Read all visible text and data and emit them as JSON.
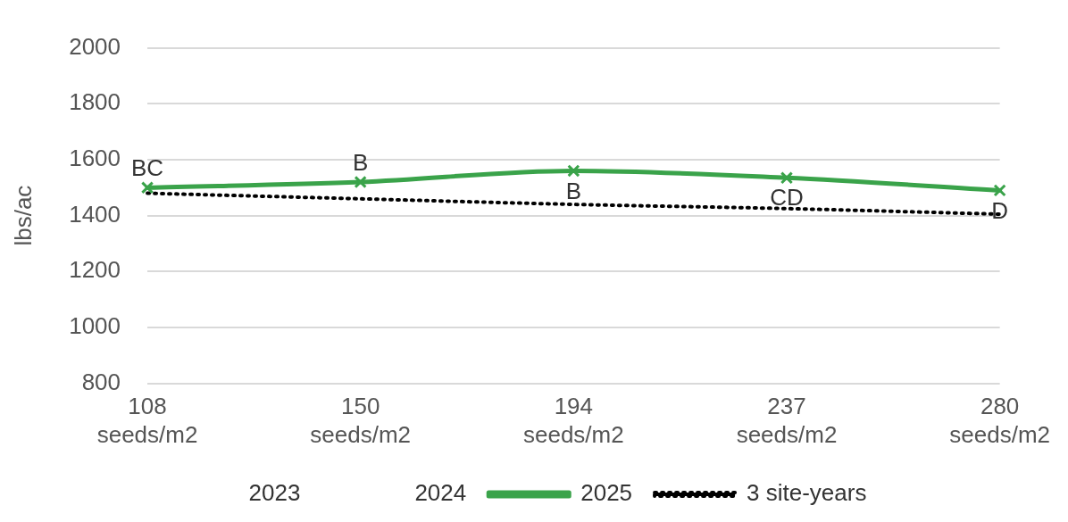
{
  "chart_data": {
    "type": "line",
    "ylabel": "lbs/ac",
    "categories": [
      "108 seeds/m2",
      "150 seeds/m2",
      "194 seeds/m2",
      "237 seeds/m2",
      "280 seeds/m2"
    ],
    "ylim": [
      800,
      2000
    ],
    "yticks": [
      800,
      1000,
      1200,
      1400,
      1600,
      1800,
      2000
    ],
    "grid": "y",
    "legend": "bottom",
    "series": [
      {
        "name": "2023",
        "values": [
          null,
          null,
          null,
          null,
          null
        ]
      },
      {
        "name": "2024",
        "values": [
          null,
          null,
          null,
          null,
          null
        ]
      },
      {
        "name": "2025",
        "color": "#3aa34a",
        "values": [
          1500,
          1520,
          1560,
          1535,
          1490
        ],
        "marker": "cross",
        "line_style": "solid"
      },
      {
        "name": "3 site-years",
        "color": "#000000",
        "values": [
          1480,
          1460,
          1440,
          1425,
          1405
        ],
        "marker": "none",
        "line_style": "dotted"
      }
    ],
    "annotations": [
      {
        "text": "BC",
        "x": "108 seeds/m2",
        "y": 1500
      },
      {
        "text": "B",
        "x": "150 seeds/m2",
        "y": 1520
      },
      {
        "text": "B",
        "x": "194 seeds/m2",
        "y": 1560
      },
      {
        "text": "CD",
        "x": "237 seeds/m2",
        "y": 1535
      },
      {
        "text": "D",
        "x": "280 seeds/m2",
        "y": 1490
      }
    ]
  }
}
